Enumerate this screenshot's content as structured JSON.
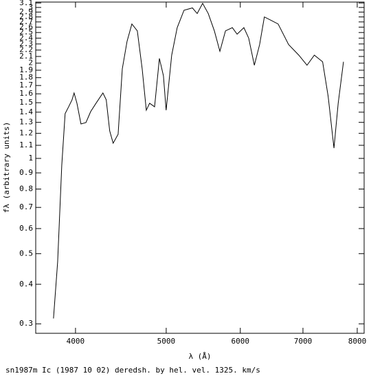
{
  "chart_data": {
    "type": "line",
    "title": "sn1987m Ic (1987 10 02) deredsh. by hel. vel.  1325. km/s",
    "xlabel": "λ (Å)",
    "ylabel": "fλ (arbitrary units)",
    "xlog": true,
    "ylog": true,
    "xlim": [
      3627,
      8137
    ],
    "ylim": [
      0.28,
      3.12
    ],
    "xticks": [
      4000,
      5000,
      6000,
      7000,
      8000
    ],
    "yticks": [
      0.3,
      0.4,
      0.5,
      0.6,
      0.7,
      0.8,
      0.9,
      1,
      1.1,
      1.2,
      1.3,
      1.4,
      1.5,
      1.6,
      1.7,
      1.8,
      1.9,
      2,
      2.1,
      2.2,
      2.3,
      2.4,
      2.5,
      2.6,
      2.7,
      2.8,
      2.9,
      3,
      3.1
    ],
    "series": [
      {
        "color": "#000000",
        "x": [
          3789,
          3828,
          3867,
          3899,
          3933,
          3966,
          3986,
          4014,
          4054,
          4104,
          4152,
          4207,
          4279,
          4314,
          4351,
          4388,
          4442,
          4488,
          4541,
          4595,
          4657,
          4713,
          4761,
          4800,
          4859,
          4917,
          4966,
          4999,
          5068,
          5137,
          5224,
          5333,
          5396,
          5469,
          5545,
          5629,
          5706,
          5785,
          5884,
          5953,
          6053,
          6125,
          6211,
          6292,
          6366,
          6475,
          6585,
          6757,
          6929,
          7070,
          7199,
          7347,
          7448,
          7555,
          7634,
          7734
        ],
        "values": [
          0.312,
          0.471,
          0.951,
          1.385,
          1.456,
          1.532,
          1.61,
          1.494,
          1.285,
          1.298,
          1.406,
          1.494,
          1.61,
          1.532,
          1.222,
          1.117,
          1.192,
          1.919,
          2.345,
          2.66,
          2.53,
          1.919,
          1.42,
          1.494,
          1.456,
          2.07,
          1.825,
          1.42,
          2.12,
          2.59,
          2.94,
          2.99,
          2.87,
          3.09,
          2.87,
          2.53,
          2.18,
          2.53,
          2.59,
          2.47,
          2.59,
          2.4,
          1.97,
          2.29,
          2.8,
          2.73,
          2.66,
          2.29,
          2.12,
          1.97,
          2.12,
          2.02,
          1.57,
          1.078,
          1.494,
          2.02
        ]
      }
    ]
  }
}
